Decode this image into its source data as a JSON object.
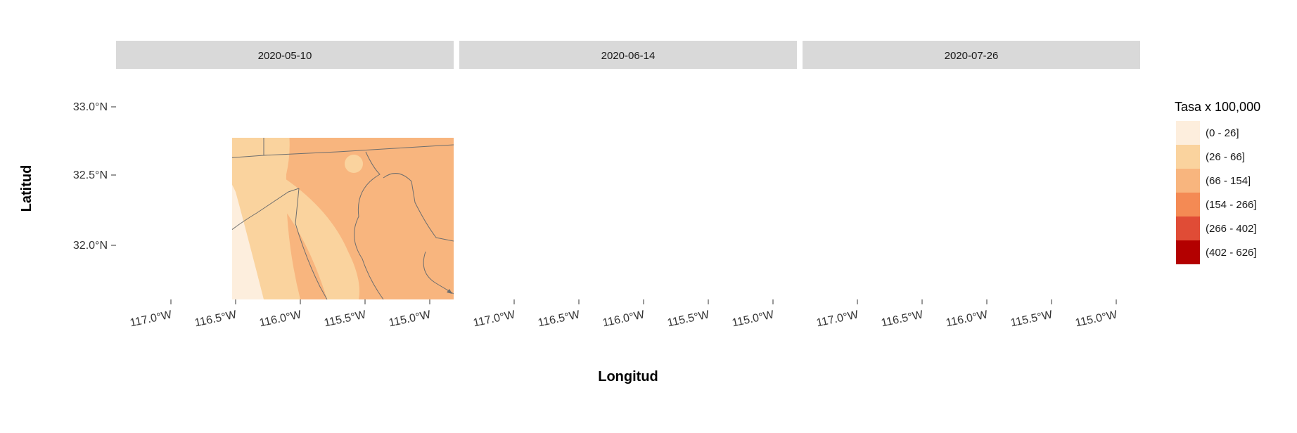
{
  "figure": {
    "x_axis_title": "Longitud",
    "y_axis_title": "Latitud"
  },
  "panels": [
    {
      "date": "2020-05-10"
    },
    {
      "date": "2020-06-14"
    },
    {
      "date": "2020-07-26"
    }
  ],
  "axes": {
    "lat_ticks": [
      "33.0°N",
      "32.5°N",
      "32.0°N"
    ],
    "lon_ticks": [
      "117.0°W",
      "116.5°W",
      "116.0°W",
      "115.5°W",
      "115.0°W"
    ]
  },
  "legend": {
    "title": "Tasa x 100,000",
    "classes": [
      {
        "label": "(0 - 26]",
        "color": "#fdeedd"
      },
      {
        "label": "(26 - 66]",
        "color": "#fad39e"
      },
      {
        "label": "(66 - 154]",
        "color": "#f8b57e"
      },
      {
        "label": "(154 - 266]",
        "color": "#f48a54"
      },
      {
        "label": "(266 - 402]",
        "color": "#e04c36"
      },
      {
        "label": "(402 - 626]",
        "color": "#b30000"
      }
    ]
  },
  "colors": {
    "ocean": "#eef5fd",
    "strip": "#d9d9d9",
    "border": "#6e6e6e",
    "graticule": "#8a8a8a"
  }
}
